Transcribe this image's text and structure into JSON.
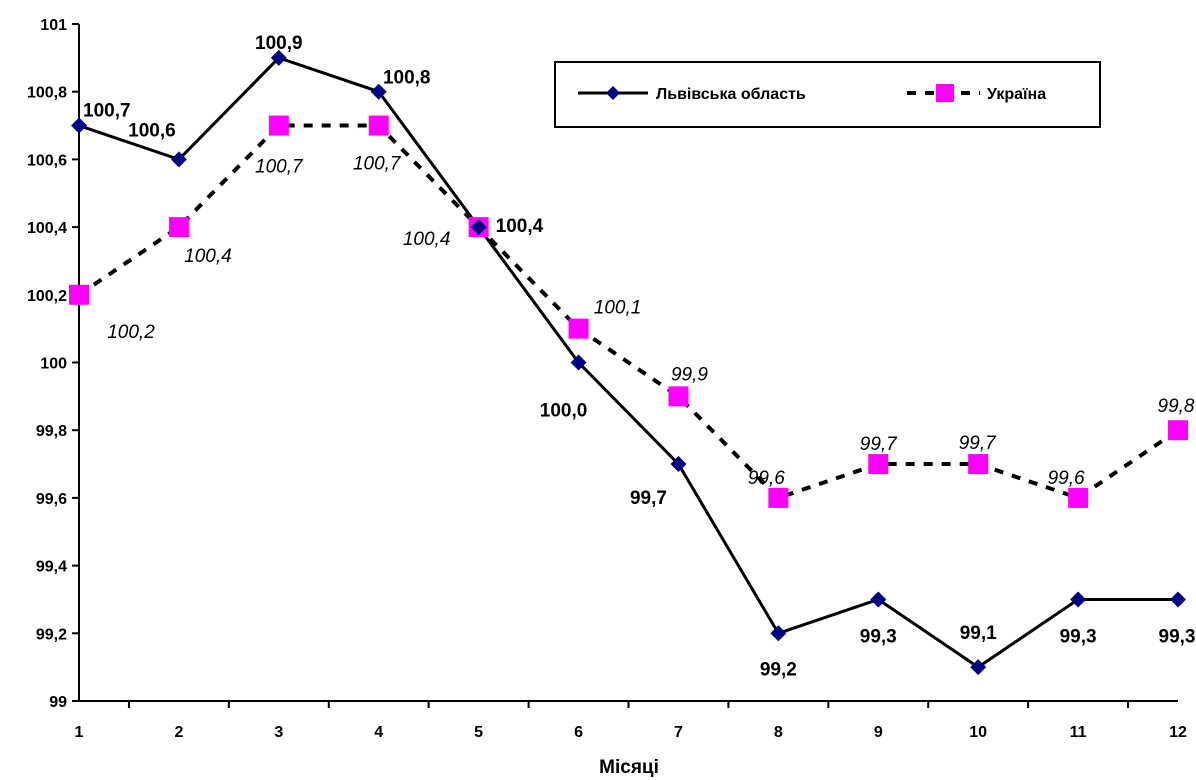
{
  "chart_data": {
    "type": "line",
    "title": "",
    "xlabel": "Місяці",
    "ylabel": "",
    "x": [
      1,
      2,
      3,
      4,
      5,
      6,
      7,
      8,
      9,
      10,
      11,
      12
    ],
    "x_tick_labels": [
      "1",
      "2",
      "3",
      "4",
      "5",
      "6",
      "7",
      "8",
      "9",
      "10",
      "11",
      "12"
    ],
    "ylim": [
      99,
      101
    ],
    "y_ticks": [
      99,
      99.2,
      99.4,
      99.6,
      99.8,
      100,
      100.2,
      100.4,
      100.6,
      100.8,
      101
    ],
    "y_tick_labels": [
      "99",
      "99,2",
      "99,4",
      "99,6",
      "99,8",
      "100",
      "100,2",
      "100,4",
      "100,6",
      "100,8",
      "101"
    ],
    "grid": false,
    "legend_position": "top-right",
    "series": [
      {
        "name": "Львівська область",
        "values": [
          100.7,
          100.6,
          100.9,
          100.8,
          100.4,
          100.0,
          99.7,
          99.2,
          99.3,
          99.1,
          99.3,
          99.3
        ],
        "labels": [
          "100,7",
          "100,6",
          "100,9",
          "100,8",
          "100,4",
          "100,0",
          "99,7",
          "99,2",
          "99,3",
          "99,1",
          "99,3",
          "99,3"
        ],
        "color": "#000000",
        "marker_color": "#000080",
        "marker": "diamond",
        "line_style": "solid"
      },
      {
        "name": "Україна",
        "values": [
          100.2,
          100.4,
          100.7,
          100.7,
          100.4,
          100.1,
          99.9,
          99.6,
          99.7,
          99.7,
          99.6,
          99.8
        ],
        "labels": [
          "100,2",
          "100,4",
          "100,7",
          "100,7",
          "100,4",
          "100,1",
          "99,9",
          "99,6",
          "99,7",
          "99,7",
          "99,6",
          "99,8"
        ],
        "color": "#000000",
        "marker_color": "#ff00ff",
        "marker": "square",
        "line_style": "dashed"
      }
    ]
  }
}
